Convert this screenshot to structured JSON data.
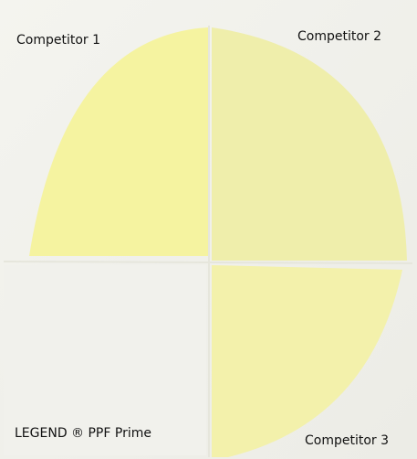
{
  "labels": {
    "top_left": "Competitor 1",
    "top_right": "Competitor 2",
    "bottom_left": "LEGEND ® PPF Prime",
    "bottom_right": "Competitor 3"
  }
}
